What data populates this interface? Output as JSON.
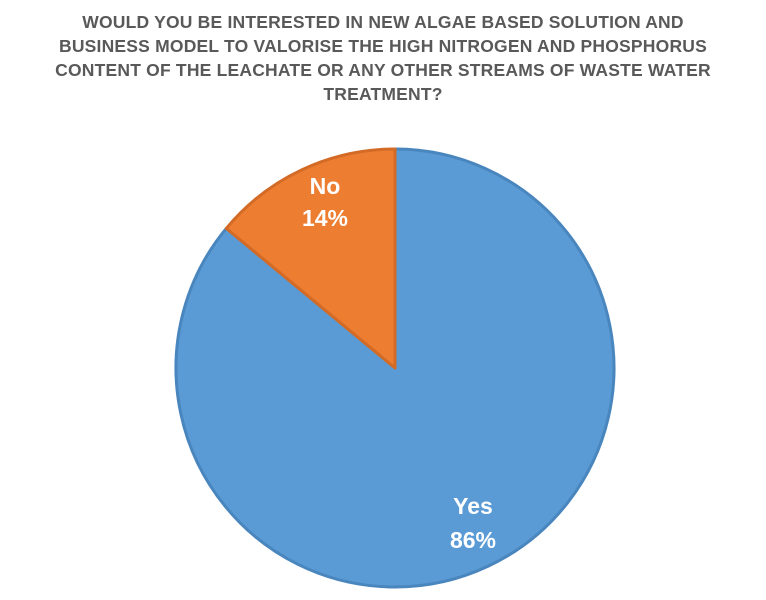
{
  "chart_data": {
    "type": "pie",
    "title_lines": [
      "WOULD YOU BE INTERESTED IN NEW ALGAE BASED SOLUTION AND",
      "BUSINESS MODEL TO VALORISE THE HIGH NITROGEN AND PHOSPHORUS",
      "CONTENT OF THE LEACHATE OR ANY OTHER STREAMS OF WASTE WATER",
      "TREATMENT?"
    ],
    "categories": [
      "Yes",
      "No"
    ],
    "values": [
      86,
      14
    ],
    "data_labels": [
      "86%",
      "14%"
    ],
    "colors": [
      "#5B9BD5",
      "#ED7D31"
    ],
    "edge_colors": [
      "#4A86BE",
      "#D36B26"
    ],
    "legend": "none"
  }
}
